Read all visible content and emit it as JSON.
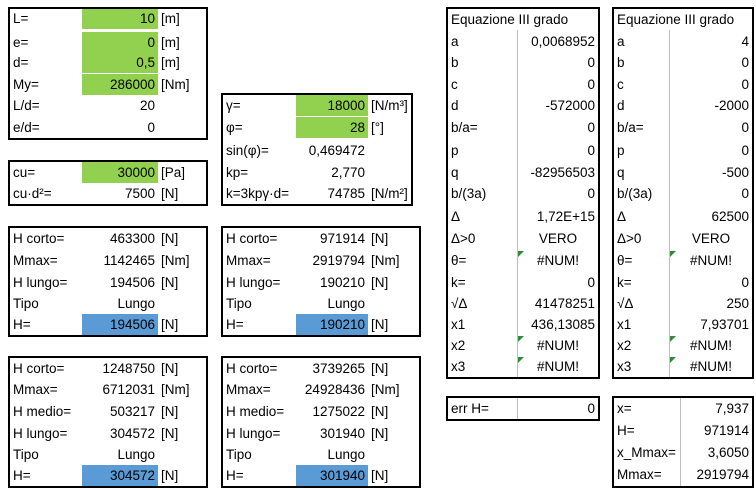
{
  "block_main": {
    "rows": [
      {
        "label": "L=",
        "value": "10",
        "unit": "[m]"
      },
      {
        "label": "e=",
        "value": "0",
        "unit": "[m]"
      },
      {
        "label": "d=",
        "value": "0,5",
        "unit": "[m]"
      },
      {
        "label": "My=",
        "value": "286000",
        "unit": "[Nm]"
      },
      {
        "label": "L/d=",
        "value": "20",
        "unit": ""
      },
      {
        "label": "e/d=",
        "value": "0",
        "unit": ""
      }
    ]
  },
  "block_cu": {
    "rows": [
      {
        "label": "cu=",
        "value": "30000",
        "unit": "[Pa]"
      },
      {
        "label": "cu·d²=",
        "value": "7500",
        "unit": "[N]"
      }
    ]
  },
  "block_gamma": {
    "rows": [
      {
        "label": "γ=",
        "value": "18000",
        "unit": "[N/m³]"
      },
      {
        "label": "φ=",
        "value": "28",
        "unit": "[°]"
      },
      {
        "label": "sin(φ)=",
        "value": "0,469472",
        "unit": ""
      },
      {
        "label": "kp=",
        "value": "2,770",
        "unit": ""
      },
      {
        "label": "k=3kpγ·d=",
        "value": "74785",
        "unit": "[N/m²]"
      }
    ]
  },
  "table_a": {
    "rows": [
      {
        "label": "H corto=",
        "value": "463300",
        "unit": "[N]"
      },
      {
        "label": "Mmax=",
        "value": "1142465",
        "unit": "[Nm]"
      },
      {
        "label": "H lungo=",
        "value": "194506",
        "unit": "[N]"
      },
      {
        "label": "Tipo",
        "value": "Lungo",
        "unit": ""
      },
      {
        "label": "H=",
        "value": "194506",
        "unit": "[N]"
      }
    ]
  },
  "table_b": {
    "rows": [
      {
        "label": "H corto=",
        "value": "971914",
        "unit": "[N]"
      },
      {
        "label": "Mmax=",
        "value": "2919794",
        "unit": "[Nm]"
      },
      {
        "label": "H lungo=",
        "value": "190210",
        "unit": "[N]"
      },
      {
        "label": "Tipo",
        "value": "Lungo",
        "unit": ""
      },
      {
        "label": "H=",
        "value": "190210",
        "unit": "[N]"
      }
    ]
  },
  "table_c": {
    "rows": [
      {
        "label": "H corto=",
        "value": "1248750",
        "unit": "[N]"
      },
      {
        "label": "Mmax=",
        "value": "6712031",
        "unit": "[Nm]"
      },
      {
        "label": "H medio=",
        "value": "503217",
        "unit": "[N]"
      },
      {
        "label": "H lungo=",
        "value": "304572",
        "unit": "[N]"
      },
      {
        "label": "Tipo",
        "value": "Lungo",
        "unit": ""
      },
      {
        "label": "H=",
        "value": "304572",
        "unit": "[N]"
      }
    ]
  },
  "table_d": {
    "rows": [
      {
        "label": "H corto=",
        "value": "3739265",
        "unit": "[N]"
      },
      {
        "label": "Mmax=",
        "value": "24928436",
        "unit": "[Nm]"
      },
      {
        "label": "H medio=",
        "value": "1275022",
        "unit": "[N]"
      },
      {
        "label": "H lungo=",
        "value": "301940",
        "unit": "[N]"
      },
      {
        "label": "Tipo",
        "value": "Lungo",
        "unit": ""
      },
      {
        "label": "H=",
        "value": "301940",
        "unit": "[N]"
      }
    ]
  },
  "eq1": {
    "title": "Equazione III grado",
    "rows": [
      {
        "label": "a",
        "value": "0,0068952"
      },
      {
        "label": "b",
        "value": "0"
      },
      {
        "label": "c",
        "value": "0"
      },
      {
        "label": "d",
        "value": "-572000"
      },
      {
        "label": "b/a=",
        "value": "0"
      },
      {
        "label": "p",
        "value": "0"
      },
      {
        "label": "q",
        "value": "-82956503"
      },
      {
        "label": "b/(3a)",
        "value": "0"
      },
      {
        "label": "Δ",
        "value": "1,72E+15"
      },
      {
        "label": "Δ>0",
        "value": "VERO"
      },
      {
        "label": "θ=",
        "value": "#NUM!"
      },
      {
        "label": "k=",
        "value": "0"
      },
      {
        "label": "√Δ",
        "value": "41478251"
      },
      {
        "label": "x1",
        "value": "436,13085"
      },
      {
        "label": "x2",
        "value": "#NUM!"
      },
      {
        "label": "x3",
        "value": "#NUM!"
      }
    ]
  },
  "eq2": {
    "title": "Equazione III grado",
    "rows": [
      {
        "label": "a",
        "value": "4"
      },
      {
        "label": "b",
        "value": "0"
      },
      {
        "label": "c",
        "value": "0"
      },
      {
        "label": "d",
        "value": "-2000"
      },
      {
        "label": "b/a=",
        "value": "0"
      },
      {
        "label": "p",
        "value": "0"
      },
      {
        "label": "q",
        "value": "-500"
      },
      {
        "label": "b/(3a)",
        "value": "0"
      },
      {
        "label": "Δ",
        "value": "62500"
      },
      {
        "label": "Δ>0",
        "value": "VERO"
      },
      {
        "label": "θ=",
        "value": "#NUM!"
      },
      {
        "label": "k=",
        "value": "0"
      },
      {
        "label": "√Δ",
        "value": "250"
      },
      {
        "label": "x1",
        "value": "7,93701"
      },
      {
        "label": "x2",
        "value": "#NUM!"
      },
      {
        "label": "x3",
        "value": "#NUM!"
      }
    ]
  },
  "err": {
    "label": "err H=",
    "value": "0"
  },
  "results": {
    "rows": [
      {
        "label": "x=",
        "value": "7,937"
      },
      {
        "label": "H=",
        "value": "971914"
      },
      {
        "label": "x_Mmax=",
        "value": "3,6050"
      },
      {
        "label": "Mmax=",
        "value": "2919794"
      }
    ]
  },
  "colors": {
    "input_green": "#92d050",
    "result_blue": "#5b9bd5",
    "error_marker": "#2e8b3a"
  }
}
